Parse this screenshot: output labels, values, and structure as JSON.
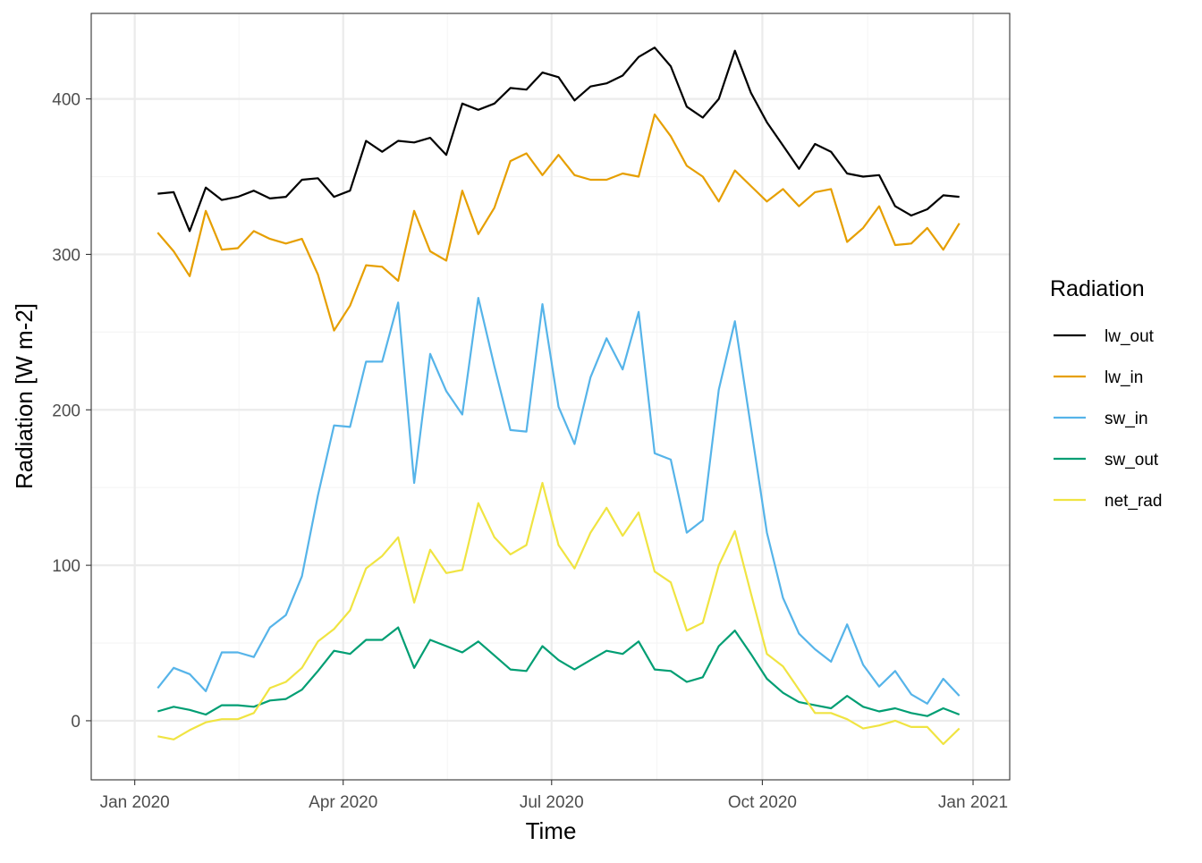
{
  "chart_data": {
    "type": "line",
    "title": "",
    "xlabel": "Time",
    "ylabel": "Radiation [W m-2]",
    "legend_title": "Radiation",
    "legend_position": "right",
    "grid": true,
    "x_tick_labels": [
      "Jan 2020",
      "Apr 2020",
      "Jul 2020",
      "Oct 2020",
      "Jan 2021"
    ],
    "x_ticks": [
      "2020-01-01",
      "2020-04-01",
      "2020-07-01",
      "2020-10-01",
      "2021-01-01"
    ],
    "y_ticks": [
      0,
      100,
      200,
      300,
      400
    ],
    "ylim": [
      -38,
      455
    ],
    "xlim": [
      "2019-12-13",
      "2021-01-17"
    ],
    "x": [
      "2020-01-11",
      "2020-01-18",
      "2020-01-25",
      "2020-02-01",
      "2020-02-08",
      "2020-02-15",
      "2020-02-22",
      "2020-02-29",
      "2020-03-07",
      "2020-03-14",
      "2020-03-21",
      "2020-03-28",
      "2020-04-04",
      "2020-04-11",
      "2020-04-18",
      "2020-04-25",
      "2020-05-02",
      "2020-05-09",
      "2020-05-16",
      "2020-05-23",
      "2020-05-30",
      "2020-06-06",
      "2020-06-13",
      "2020-06-20",
      "2020-06-27",
      "2020-07-04",
      "2020-07-11",
      "2020-07-18",
      "2020-07-25",
      "2020-08-01",
      "2020-08-08",
      "2020-08-15",
      "2020-08-22",
      "2020-08-29",
      "2020-09-05",
      "2020-09-12",
      "2020-09-19",
      "2020-09-26",
      "2020-10-03",
      "2020-10-10",
      "2020-10-17",
      "2020-10-24",
      "2020-10-31",
      "2020-11-07",
      "2020-11-14",
      "2020-11-21",
      "2020-11-28",
      "2020-12-05",
      "2020-12-12",
      "2020-12-19",
      "2020-12-26"
    ],
    "series": [
      {
        "name": "lw_out",
        "color": "#000000",
        "values": [
          339,
          340,
          315,
          343,
          335,
          337,
          341,
          336,
          337,
          348,
          349,
          337,
          341,
          373,
          366,
          373,
          372,
          375,
          364,
          397,
          393,
          397,
          407,
          406,
          417,
          414,
          399,
          408,
          410,
          415,
          427,
          433,
          421,
          395,
          388,
          400,
          431,
          404,
          385,
          370,
          355,
          371,
          366,
          352,
          350,
          351,
          331,
          325,
          329,
          338,
          337
        ]
      },
      {
        "name": "lw_in",
        "color": "#E69F00",
        "values": [
          314,
          302,
          286,
          328,
          303,
          304,
          315,
          310,
          307,
          310,
          287,
          251,
          267,
          293,
          292,
          283,
          328,
          302,
          296,
          341,
          313,
          330,
          360,
          365,
          351,
          364,
          351,
          348,
          348,
          352,
          350,
          390,
          376,
          357,
          350,
          334,
          354,
          344,
          334,
          342,
          331,
          340,
          342,
          308,
          317,
          331,
          306,
          307,
          317,
          303,
          320
        ]
      },
      {
        "name": "sw_in",
        "color": "#56B4E9",
        "values": [
          21,
          34,
          30,
          19,
          44,
          44,
          41,
          60,
          68,
          93,
          145,
          190,
          189,
          231,
          231,
          269,
          153,
          236,
          212,
          197,
          272,
          228,
          187,
          186,
          268,
          202,
          178,
          221,
          246,
          226,
          263,
          172,
          168,
          121,
          129,
          213,
          257,
          189,
          121,
          79,
          56,
          46,
          38,
          62,
          36,
          22,
          32,
          17,
          11,
          27,
          16
        ]
      },
      {
        "name": "sw_out",
        "color": "#009E73",
        "values": [
          6,
          9,
          7,
          4,
          10,
          10,
          9,
          13,
          14,
          20,
          32,
          45,
          43,
          52,
          52,
          60,
          34,
          52,
          48,
          44,
          51,
          42,
          33,
          32,
          48,
          39,
          33,
          39,
          45,
          43,
          51,
          33,
          32,
          25,
          28,
          48,
          58,
          43,
          27,
          18,
          12,
          10,
          8,
          16,
          9,
          6,
          8,
          5,
          3,
          8,
          4
        ]
      },
      {
        "name": "net_rad",
        "color": "#F0E442",
        "values": [
          -10,
          -12,
          -6,
          -1,
          1,
          1,
          5,
          21,
          25,
          34,
          51,
          59,
          71,
          98,
          106,
          118,
          76,
          110,
          95,
          97,
          140,
          118,
          107,
          113,
          153,
          113,
          98,
          121,
          137,
          119,
          134,
          96,
          89,
          58,
          63,
          100,
          122,
          82,
          43,
          35,
          20,
          5,
          5,
          1,
          -5,
          -3,
          0,
          -4,
          -4,
          -15,
          -5
        ]
      }
    ]
  }
}
